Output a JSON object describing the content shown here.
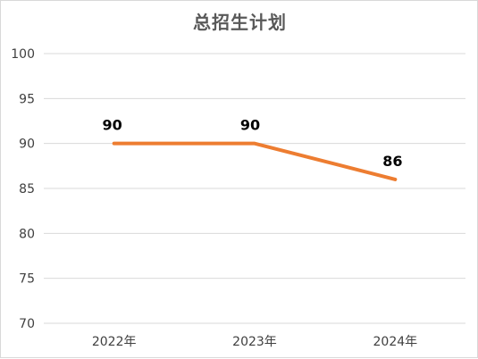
{
  "chart_data": {
    "type": "line",
    "title": "总招生计划",
    "categories": [
      "2022年",
      "2023年",
      "2024年"
    ],
    "series": [
      {
        "values": [
          90,
          90,
          86
        ],
        "color": "#ED7D31"
      }
    ],
    "data_labels": [
      "90",
      "90",
      "86"
    ],
    "ylim": [
      70,
      100
    ],
    "yticks": [
      "70",
      "75",
      "80",
      "85",
      "90",
      "95",
      "100"
    ],
    "grid": true,
    "legend": "none"
  }
}
